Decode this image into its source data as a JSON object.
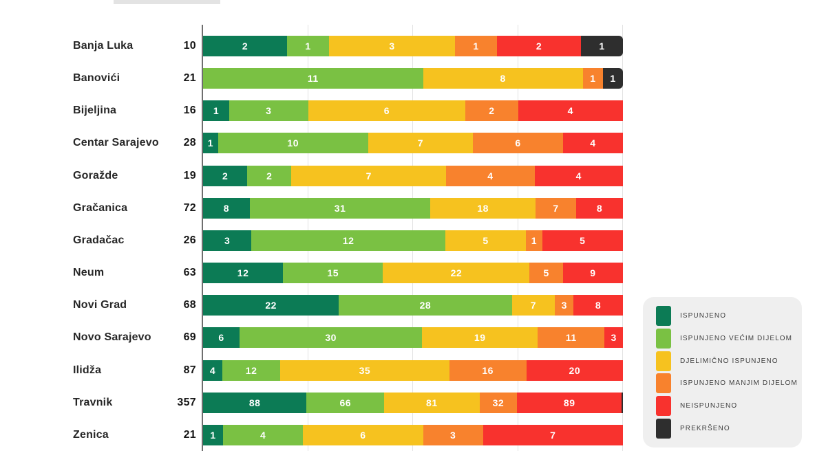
{
  "page": {
    "background": "#ffffff"
  },
  "chart_data": {
    "type": "bar",
    "variant": "horizontal-stacked-normalized",
    "title": "",
    "legend_position": "right",
    "x_axis": {
      "grid": true,
      "gridlines_percent": [
        25,
        50,
        75,
        100
      ]
    },
    "series": [
      {
        "name": "ISPUNJENO",
        "color": "#0c7b55",
        "slug": "ispunjeno"
      },
      {
        "name": "ISPUNJENO VEĆIM DIJELOM",
        "color": "#7ac143",
        "slug": "ispunjeno-vecim-dijelom"
      },
      {
        "name": "DJELIMIČNO ISPUNJENO",
        "color": "#f6c21f",
        "slug": "djelimicno-ispunjeno"
      },
      {
        "name": "ISPUNJENO MANJIM DIJELOM",
        "color": "#f8822d",
        "slug": "ispunjeno-manjim-dijelom"
      },
      {
        "name": "NEISPUNJENO",
        "color": "#f8322e",
        "slug": "neispunjeno"
      },
      {
        "name": "PREKRŠENO",
        "color": "#2e2e2e",
        "slug": "prekrseno"
      }
    ],
    "rows": [
      {
        "label": "Banja Luka",
        "total": 10,
        "values": [
          2,
          1,
          3,
          1,
          2,
          1
        ]
      },
      {
        "label": "Banovići",
        "total": 21,
        "values": [
          0,
          11,
          8,
          1,
          0,
          1
        ]
      },
      {
        "label": "Bijeljina",
        "total": 16,
        "values": [
          1,
          3,
          6,
          2,
          4,
          0
        ]
      },
      {
        "label": "Centar Sarajevo",
        "total": 28,
        "values": [
          1,
          10,
          7,
          6,
          4,
          0
        ]
      },
      {
        "label": "Goražde",
        "total": 19,
        "values": [
          2,
          2,
          7,
          4,
          4,
          0
        ]
      },
      {
        "label": "Gračanica",
        "total": 72,
        "values": [
          8,
          31,
          18,
          7,
          8,
          0
        ]
      },
      {
        "label": "Gradačac",
        "total": 26,
        "values": [
          3,
          12,
          5,
          1,
          5,
          0
        ]
      },
      {
        "label": "Neum",
        "total": 63,
        "values": [
          12,
          15,
          22,
          5,
          9,
          0
        ]
      },
      {
        "label": "Novi Grad",
        "total": 68,
        "values": [
          22,
          28,
          7,
          3,
          8,
          0
        ]
      },
      {
        "label": "Novo Sarajevo",
        "total": 69,
        "values": [
          6,
          30,
          19,
          11,
          3,
          0
        ]
      },
      {
        "label": "Ilidža",
        "total": 87,
        "values": [
          4,
          12,
          35,
          16,
          20,
          0
        ]
      },
      {
        "label": "Travnik",
        "total": 357,
        "values": [
          88,
          66,
          81,
          32,
          89,
          1
        ]
      },
      {
        "label": "Zenica",
        "total": 21,
        "values": [
          1,
          4,
          6,
          3,
          7,
          0
        ]
      }
    ],
    "colors": {
      "axis": "#6e6e6e",
      "gridline": "#e2e2e2",
      "legend_background": "#efefef",
      "bar_value_text": "#ffffff",
      "row_label_text": "#272727"
    }
  }
}
